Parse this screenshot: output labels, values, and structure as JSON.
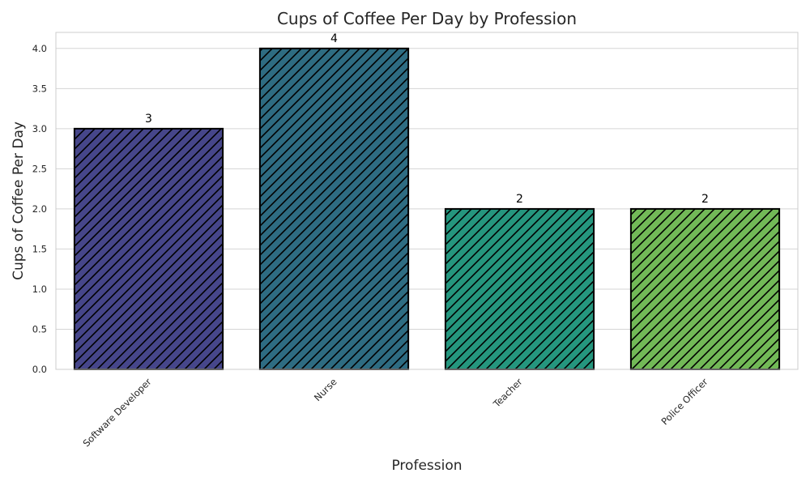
{
  "chart_data": {
    "type": "bar",
    "title": "Cups of Coffee Per Day by Profession",
    "xlabel": "Profession",
    "ylabel": "Cups of Coffee Per Day",
    "categories": [
      "Software Developer",
      "Nurse",
      "Teacher",
      "Police Officer"
    ],
    "values": [
      3,
      4,
      2,
      2
    ],
    "data_labels": [
      "3",
      "4",
      "2",
      "2"
    ],
    "ylim": [
      0,
      4.2
    ],
    "yticks": [
      0.0,
      0.5,
      1.0,
      1.5,
      2.0,
      2.5,
      3.0,
      3.5,
      4.0
    ],
    "ytick_labels": [
      "0.0",
      "0.5",
      "1.0",
      "1.5",
      "2.0",
      "2.5",
      "3.0",
      "3.5",
      "4.0"
    ],
    "bar_colors": [
      "#46468a",
      "#2e6c82",
      "#25967e",
      "#72b957"
    ],
    "bar_edge_color": "#000000",
    "hatch": "diagonal",
    "grid": "y",
    "grid_color": "#d5d5d5",
    "spine_color": "#cccccc",
    "xtick_rotation": "45"
  }
}
